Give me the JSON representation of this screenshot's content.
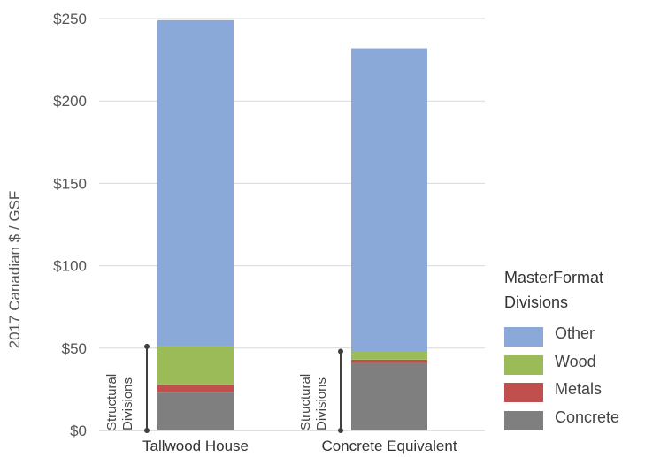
{
  "chart_data": {
    "type": "bar",
    "stacked": true,
    "categories": [
      "Tallwood House",
      "Concrete Equivalent"
    ],
    "series": [
      {
        "name": "Concrete",
        "color": "#7f7f7f",
        "values": [
          23,
          41
        ]
      },
      {
        "name": "Metals",
        "color": "#c0504d",
        "values": [
          5,
          2
        ]
      },
      {
        "name": "Wood",
        "color": "#9bbb59",
        "values": [
          23,
          5
        ]
      },
      {
        "name": "Other",
        "color": "#8aa8d8",
        "values": [
          198,
          184
        ]
      }
    ],
    "ylabel": "2017 Canadian $ / GSF",
    "y_ticks": [
      "$0",
      "$50",
      "$100",
      "$150",
      "$200",
      "$250"
    ],
    "y_tick_values": [
      0,
      50,
      100,
      150,
      200,
      250
    ],
    "ylim": [
      0,
      250
    ],
    "grid": true,
    "legend": {
      "title_lines": [
        "MasterFormat",
        "Divisions"
      ],
      "placement": "right",
      "order": [
        "Other",
        "Wood",
        "Metals",
        "Concrete"
      ]
    },
    "annotations": [
      {
        "category": "Tallwood House",
        "lines": [
          "Structural",
          "Divisions"
        ],
        "from": 0,
        "to": 51
      },
      {
        "category": "Concrete Equivalent",
        "lines": [
          "Structural",
          "Divisions"
        ],
        "from": 0,
        "to": 48
      }
    ]
  }
}
